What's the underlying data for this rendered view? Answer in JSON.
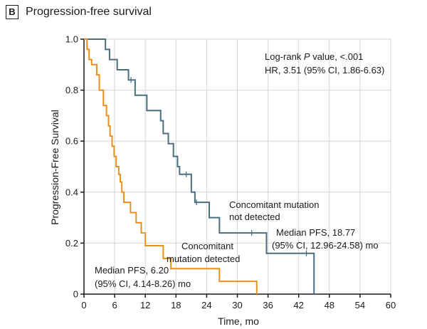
{
  "panel": {
    "letter": "B",
    "title": "Progression-free survival"
  },
  "chart_data": {
    "type": "line",
    "title": "Progression-free survival",
    "xlabel": "Time, mo",
    "ylabel": "Progression-Free Survival",
    "xlim": [
      0,
      60
    ],
    "ylim": [
      0,
      1.0
    ],
    "xticks": [
      0,
      6,
      12,
      18,
      24,
      30,
      36,
      42,
      48,
      54,
      60
    ],
    "yticks": [
      0,
      0.2,
      0.4,
      0.6,
      0.8,
      1.0
    ],
    "xtick_labels": [
      "0",
      "6",
      "12",
      "18",
      "24",
      "30",
      "36",
      "42",
      "48",
      "54",
      "60"
    ],
    "ytick_labels": [
      "0",
      "0.2",
      "0.4",
      "0.6",
      "0.8",
      "1.0"
    ],
    "series": [
      {
        "name": "Concomitant mutation not detected",
        "color": "#4a6f80",
        "steps": [
          [
            0,
            1.0
          ],
          [
            4.2,
            0.96
          ],
          [
            5.0,
            0.92
          ],
          [
            6.5,
            0.88
          ],
          [
            7.8,
            0.88
          ],
          [
            8.7,
            0.84
          ],
          [
            10,
            0.78
          ],
          [
            12.3,
            0.72
          ],
          [
            15,
            0.68
          ],
          [
            15.5,
            0.63
          ],
          [
            16.5,
            0.59
          ],
          [
            17.5,
            0.54
          ],
          [
            18.3,
            0.5
          ],
          [
            18.7,
            0.47
          ],
          [
            21.0,
            0.4
          ],
          [
            21.7,
            0.36
          ],
          [
            24.5,
            0.3
          ],
          [
            26.5,
            0.24
          ],
          [
            35.7,
            0.16
          ],
          [
            45.0,
            0.0
          ]
        ],
        "end_x": 45.0,
        "censors": [
          [
            9.2,
            0.84
          ],
          [
            20.0,
            0.47
          ],
          [
            22.0,
            0.36
          ],
          [
            32.8,
            0.24
          ],
          [
            43.5,
            0.16
          ]
        ]
      },
      {
        "name": "Concomitant mutation detected",
        "color": "#e8901e",
        "steps": [
          [
            0,
            1.0
          ],
          [
            0.6,
            0.96
          ],
          [
            1.0,
            0.92
          ],
          [
            1.5,
            0.9
          ],
          [
            2.5,
            0.86
          ],
          [
            3.0,
            0.8
          ],
          [
            3.8,
            0.74
          ],
          [
            4.4,
            0.7
          ],
          [
            4.8,
            0.66
          ],
          [
            5.1,
            0.62
          ],
          [
            5.5,
            0.58
          ],
          [
            5.9,
            0.54
          ],
          [
            6.3,
            0.5
          ],
          [
            6.8,
            0.47
          ],
          [
            7.1,
            0.44
          ],
          [
            7.4,
            0.4
          ],
          [
            7.8,
            0.36
          ],
          [
            9.1,
            0.32
          ],
          [
            10.2,
            0.28
          ],
          [
            11.2,
            0.24
          ],
          [
            12.0,
            0.19
          ],
          [
            15.5,
            0.14
          ],
          [
            17.0,
            0.1
          ],
          [
            26.5,
            0.05
          ],
          [
            33.8,
            0.0
          ]
        ],
        "end_x": 33.8,
        "censors": []
      }
    ],
    "annotations": {
      "stat_line1_prefix": "Log-rank ",
      "stat_line1_italic": "P",
      "stat_line1_suffix": " value, <.001",
      "stat_line2": "HR, 3.51 (95% CI, 1.86-6.63)",
      "label_not_detected_1": "Concomitant mutation",
      "label_not_detected_2": "not detected",
      "median_not_detected_1": "Median PFS, 18.77",
      "median_not_detected_2": "(95% CI, 12.96-24.58) mo",
      "label_detected_1": "Concomitant",
      "label_detected_2": "mutation detected",
      "median_detected_1": "Median PFS, 6.20",
      "median_detected_2": "(95% CI, 4.14-8.26) mo"
    }
  }
}
